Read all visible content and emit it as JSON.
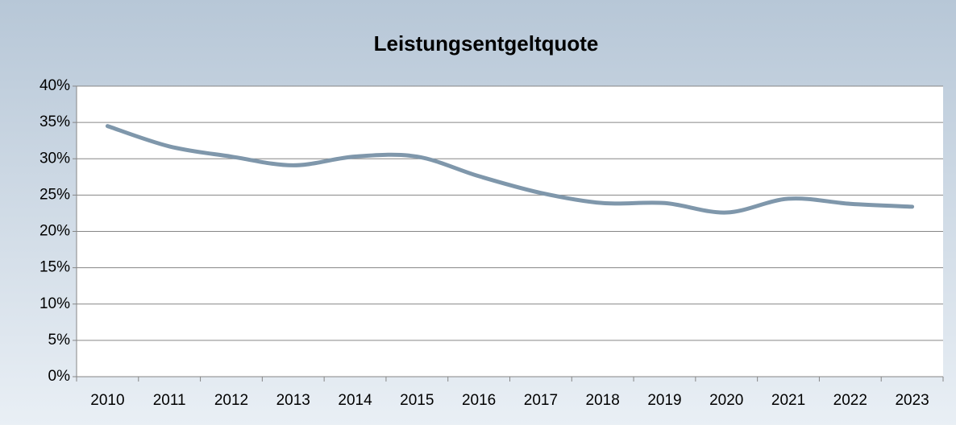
{
  "chart_data": {
    "type": "line",
    "title": "Leistungsentgeltquote",
    "categories": [
      "2010",
      "2011",
      "2012",
      "2013",
      "2014",
      "2015",
      "2016",
      "2017",
      "2018",
      "2019",
      "2020",
      "2021",
      "2022",
      "2023"
    ],
    "series": [
      {
        "name": "Leistungsentgeltquote",
        "color": "#7f97ab",
        "values": [
          34.5,
          31.7,
          30.3,
          29.1,
          30.3,
          30.3,
          27.6,
          25.3,
          23.9,
          23.9,
          22.6,
          24.5,
          23.8,
          23.4
        ]
      }
    ],
    "ylim": [
      0,
      40
    ],
    "yticks": [
      {
        "value": 0,
        "label": "0%"
      },
      {
        "value": 5,
        "label": "5%"
      },
      {
        "value": 10,
        "label": "10%"
      },
      {
        "value": 15,
        "label": "15%"
      },
      {
        "value": 20,
        "label": "20%"
      },
      {
        "value": 25,
        "label": "25%"
      },
      {
        "value": 30,
        "label": "30%"
      },
      {
        "value": 35,
        "label": "35%"
      },
      {
        "value": 40,
        "label": "40%"
      }
    ],
    "grid": true,
    "smooth": true
  }
}
